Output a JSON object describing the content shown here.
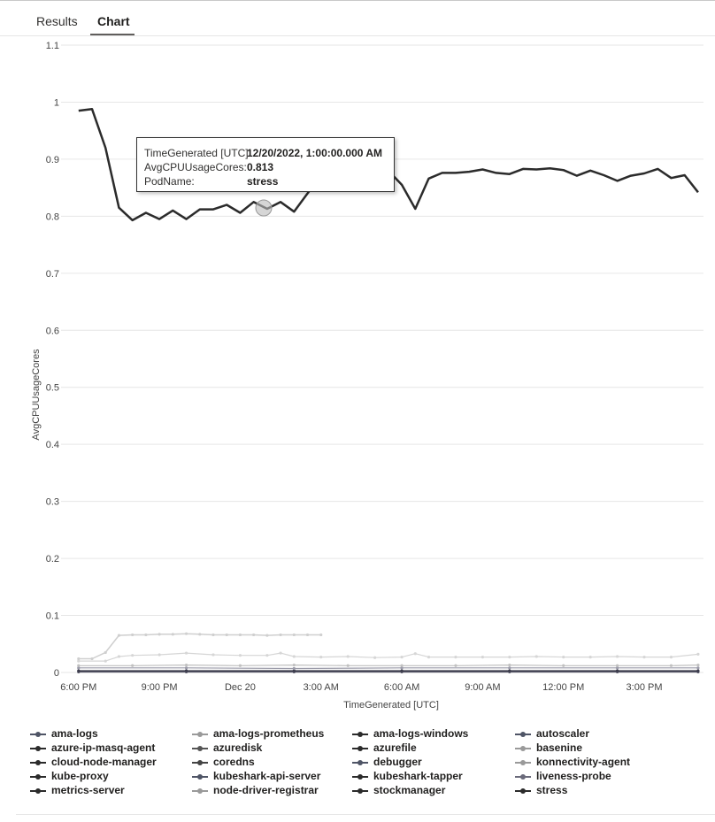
{
  "tabs": {
    "results": "Results",
    "chart": "Chart"
  },
  "tooltip": {
    "time_key": "TimeGenerated [UTC]:",
    "time_val": "12/20/2022, 1:00:00.000 AM",
    "cpu_key": "AvgCPUUsageCores:",
    "cpu_val": "0.813",
    "pod_key": "PodName:",
    "pod_val": "stress"
  },
  "colors": {
    "stress": "#2b2b2b",
    "light": "#d2d2d2",
    "mid": "#b8b8b8",
    "dark": "#3a3a5a",
    "grid": "#e6e6e6"
  },
  "chart_data": {
    "type": "line",
    "xlabel": "TimeGenerated [UTC]",
    "ylabel": "AvgCPUUsageCores",
    "ylim": [
      0,
      1.1
    ],
    "yticks": [
      "0",
      "0.1",
      "0.2",
      "0.3",
      "0.4",
      "0.5",
      "0.6",
      "0.7",
      "0.8",
      "0.9",
      "1",
      "1.1"
    ],
    "xticks": [
      "6:00 PM",
      "9:00 PM",
      "Dec 20",
      "3:00 AM",
      "6:00 AM",
      "9:00 AM",
      "12:00 PM",
      "3:00 PM"
    ],
    "xtick_hours": [
      0,
      3,
      6,
      9,
      12,
      15,
      18,
      21
    ],
    "x_range_hours": [
      -0.65,
      23.2
    ],
    "grid": true,
    "legend_position": "bottom",
    "series": [
      {
        "name": "stress",
        "color": "#2b2b2b",
        "width": 2.5,
        "x": [
          0,
          0.5,
          1,
          1.5,
          2,
          2.5,
          3,
          3.5,
          4,
          4.5,
          5,
          5.5,
          6,
          6.5,
          7,
          7.5,
          8,
          8.5,
          9,
          9.5,
          10,
          10.5,
          11,
          11.5,
          12,
          12.5,
          13,
          13.5,
          14,
          14.5,
          15,
          15.5,
          16,
          16.5,
          17,
          17.5,
          18,
          18.5,
          19,
          19.5,
          20,
          20.5,
          21,
          21.5,
          22,
          22.5,
          23
        ],
        "values": [
          0.985,
          0.988,
          0.92,
          0.815,
          0.793,
          0.806,
          0.795,
          0.81,
          0.795,
          0.812,
          0.812,
          0.82,
          0.806,
          0.825,
          0.813,
          0.825,
          0.808,
          0.84,
          0.872,
          0.865,
          0.864,
          0.872,
          0.877,
          0.88,
          0.855,
          0.813,
          0.866,
          0.876,
          0.876,
          0.878,
          0.882,
          0.876,
          0.874,
          0.883,
          0.882,
          0.884,
          0.881,
          0.871,
          0.88,
          0.872,
          0.862,
          0.871,
          0.875,
          0.883,
          0.867,
          0.872,
          0.842
        ]
      },
      {
        "name": "ama-logs-prometheus",
        "color": "#cfcfcf",
        "width": 1.5,
        "x": [
          0,
          0.5,
          1,
          1.5,
          2,
          2.5,
          3,
          3.5,
          4,
          4.5,
          5,
          5.5,
          6,
          6.5,
          7,
          7.5,
          8,
          8.5,
          9
        ],
        "values": [
          0.024,
          0.024,
          0.035,
          0.065,
          0.066,
          0.066,
          0.067,
          0.067,
          0.068,
          0.067,
          0.066,
          0.066,
          0.066,
          0.066,
          0.065,
          0.066,
          0.066,
          0.066,
          0.066
        ]
      },
      {
        "name": "ama-logs",
        "color": "#d6d6d6",
        "width": 1.2,
        "x": [
          0,
          1,
          1.5,
          2,
          3,
          4,
          5,
          6,
          7,
          7.5,
          8,
          9,
          10,
          11,
          12,
          12.5,
          13,
          14,
          15,
          16,
          17,
          18,
          19,
          20,
          21,
          22,
          23
        ],
        "values": [
          0.02,
          0.02,
          0.028,
          0.03,
          0.031,
          0.034,
          0.031,
          0.03,
          0.03,
          0.034,
          0.028,
          0.027,
          0.028,
          0.026,
          0.027,
          0.033,
          0.027,
          0.027,
          0.027,
          0.027,
          0.028,
          0.027,
          0.027,
          0.028,
          0.027,
          0.027,
          0.032
        ]
      },
      {
        "name": "coredns",
        "color": "#c0c0c0",
        "width": 1.2,
        "x": [
          0,
          2,
          4,
          6,
          8,
          10,
          12,
          14,
          16,
          18,
          20,
          22,
          23
        ],
        "values": [
          0.012,
          0.012,
          0.013,
          0.012,
          0.013,
          0.012,
          0.012,
          0.012,
          0.013,
          0.012,
          0.012,
          0.012,
          0.013
        ]
      },
      {
        "name": "kubeshark-tapper",
        "color": "#9a9aa8",
        "width": 1.2,
        "x": [
          0,
          4,
          8,
          12,
          16,
          20,
          23
        ],
        "values": [
          0.008,
          0.008,
          0.007,
          0.008,
          0.008,
          0.008,
          0.008
        ]
      },
      {
        "name": "azure-ip-masq-agent",
        "color": "#3a3a4a",
        "width": 1.5,
        "x": [
          0,
          4,
          8,
          12,
          16,
          20,
          23
        ],
        "values": [
          0.003,
          0.003,
          0.003,
          0.003,
          0.003,
          0.003,
          0.003
        ]
      },
      {
        "name": "metrics-server",
        "color": "#555566",
        "width": 1.5,
        "x": [
          0,
          4,
          8,
          12,
          16,
          20,
          23
        ],
        "values": [
          0.001,
          0.001,
          0.001,
          0.001,
          0.001,
          0.001,
          0.001
        ]
      }
    ],
    "legend": [
      {
        "name": "ama-logs",
        "color": "#4f5566"
      },
      {
        "name": "ama-logs-prometheus",
        "color": "#9a9a9a"
      },
      {
        "name": "ama-logs-windows",
        "color": "#2b2b2b"
      },
      {
        "name": "autoscaler",
        "color": "#4f5566"
      },
      {
        "name": "azure-ip-masq-agent",
        "color": "#2b2b2b"
      },
      {
        "name": "azuredisk",
        "color": "#555555"
      },
      {
        "name": "azurefile",
        "color": "#2b2b2b"
      },
      {
        "name": "basenine",
        "color": "#9a9a9a"
      },
      {
        "name": "cloud-node-manager",
        "color": "#2b2b2b"
      },
      {
        "name": "coredns",
        "color": "#444444"
      },
      {
        "name": "debugger",
        "color": "#4f5566"
      },
      {
        "name": "konnectivity-agent",
        "color": "#9a9a9a"
      },
      {
        "name": "kube-proxy",
        "color": "#2b2b2b"
      },
      {
        "name": "kubeshark-api-server",
        "color": "#4f5566"
      },
      {
        "name": "kubeshark-tapper",
        "color": "#2b2b2b"
      },
      {
        "name": "liveness-probe",
        "color": "#6a6a7a"
      },
      {
        "name": "metrics-server",
        "color": "#2b2b2b"
      },
      {
        "name": "node-driver-registrar",
        "color": "#9a9a9a"
      },
      {
        "name": "stockmanager",
        "color": "#2b2b2b"
      },
      {
        "name": "stress",
        "color": "#2b2b2b"
      }
    ]
  }
}
